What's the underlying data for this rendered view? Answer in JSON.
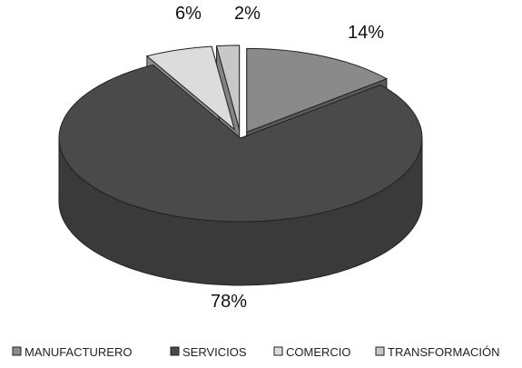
{
  "chart_data": {
    "type": "pie",
    "style": "3d-exploded",
    "categories": [
      "MANUFACTURERO",
      "SERVICIOS",
      "COMERCIO",
      "TRANSFORMACIÓN"
    ],
    "values": [
      14,
      78,
      6,
      2
    ],
    "data_labels": [
      "14%",
      "78%",
      "6%",
      "2%"
    ],
    "colors": [
      "#8a8a8a",
      "#4a4a4a",
      "#dcdcdc",
      "#c8c8c8"
    ],
    "legend_position": "bottom",
    "title": ""
  }
}
